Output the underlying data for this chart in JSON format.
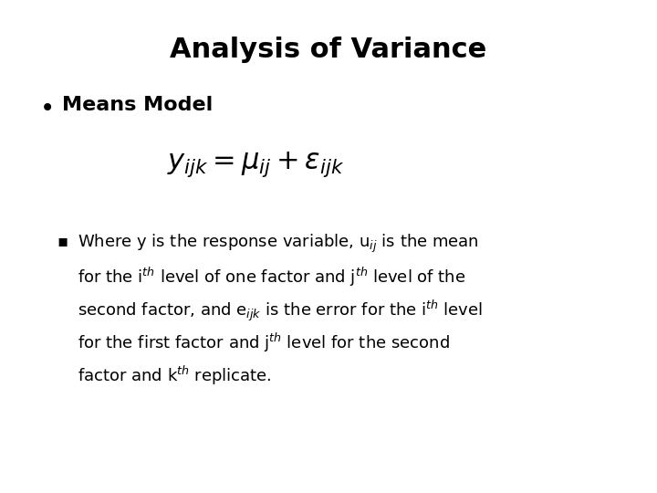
{
  "title": "Analysis of Variance",
  "title_fontsize": 22,
  "title_fontweight": "bold",
  "background_color": "#ffffff",
  "bullet1_text": "Means Model",
  "bullet1_fontsize": 16,
  "bullet1_fontweight": "bold",
  "formula_fontsize": 22,
  "sub_bullet_fontsize": 13,
  "body_text_lines": [
    "Where y is the response variable, u$_{ij}$ is the mean",
    "for the i$^{th}$ level of one factor and j$^{th}$ level of the",
    "second factor, and e$_{ijk}$ is the error for the i$^{th}$ level",
    "for the first factor and j$^{th}$ level for the second",
    "factor and k$^{th}$ replicate."
  ]
}
